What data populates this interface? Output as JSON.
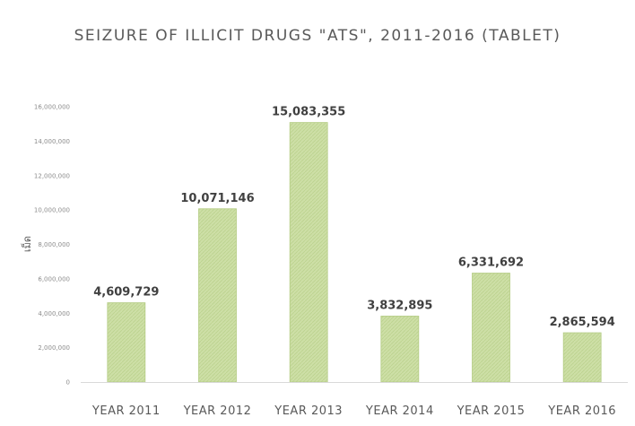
{
  "chart_data": {
    "type": "bar",
    "title": "SEIZURE OF ILLICIT DRUGS \"ATS\", 2011-2016 (TABLET)",
    "ylabel": "เม็ด",
    "xlabel": "",
    "categories": [
      "YEAR 2011",
      "YEAR 2012",
      "YEAR 2013",
      "YEAR 2014",
      "YEAR 2015",
      "YEAR 2016"
    ],
    "values": [
      4609729,
      10071146,
      15083355,
      3832895,
      6331692,
      2865594
    ],
    "data_labels": [
      "4,609,729",
      "10,071,146",
      "15,083,355",
      "3,832,895",
      "6,331,692",
      "2,865,594"
    ],
    "ylim": [
      0,
      16000000
    ],
    "yticks": [
      0,
      2000000,
      4000000,
      6000000,
      8000000,
      10000000,
      12000000,
      14000000,
      16000000
    ],
    "ytick_labels": [
      "0",
      "2,000,000",
      "4,000,000",
      "6,000,000",
      "8,000,000",
      "10,000,000",
      "12,000,000",
      "14,000,000",
      "16,000,000"
    ],
    "grid": false,
    "legend": "none",
    "colors": {
      "bar_fill": "#c9dca0",
      "bar_stroke": "#b4cc84",
      "axis": "#d9d9d9"
    }
  }
}
